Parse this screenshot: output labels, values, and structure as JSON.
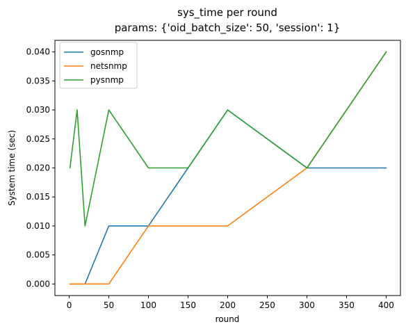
{
  "chart_data": {
    "type": "line",
    "title": "sys_time per round",
    "subtitle": "params: {'oid_batch_size': 50, 'session': 1}",
    "xlabel": "round",
    "ylabel": "System time (sec)",
    "xlim": [
      -18,
      418
    ],
    "ylim": [
      -0.002,
      0.042
    ],
    "x_ticks": [
      0,
      50,
      100,
      150,
      200,
      250,
      300,
      350,
      400
    ],
    "x_tick_labels": [
      "0",
      "50",
      "100",
      "150",
      "200",
      "250",
      "300",
      "350",
      "400"
    ],
    "y_ticks": [
      0,
      0.005,
      0.01,
      0.015,
      0.02,
      0.025,
      0.03,
      0.035,
      0.04
    ],
    "y_tick_labels": [
      "0.000",
      "0.005",
      "0.010",
      "0.015",
      "0.020",
      "0.025",
      "0.030",
      "0.035",
      "0.040"
    ],
    "grid": false,
    "legend_position": "top-left",
    "series": [
      {
        "name": "gosnmp",
        "color": "#1f77b4",
        "x": [
          1,
          10,
          20,
          50,
          100,
          150,
          200,
          300,
          400
        ],
        "y": [
          0.0,
          0.0,
          0.0,
          0.01,
          0.01,
          0.02,
          0.03,
          0.02,
          0.02
        ]
      },
      {
        "name": "netsnmp",
        "color": "#ff7f0e",
        "x": [
          1,
          10,
          20,
          50,
          100,
          150,
          200,
          300,
          400
        ],
        "y": [
          0.0,
          0.0,
          0.0,
          0.0,
          0.01,
          0.01,
          0.01,
          0.02,
          0.04
        ]
      },
      {
        "name": "pysnmp",
        "color": "#2ca02c",
        "x": [
          1,
          10,
          20,
          50,
          100,
          150,
          200,
          300,
          400
        ],
        "y": [
          0.02,
          0.03,
          0.01,
          0.03,
          0.02,
          0.02,
          0.03,
          0.02,
          0.04
        ]
      }
    ]
  }
}
